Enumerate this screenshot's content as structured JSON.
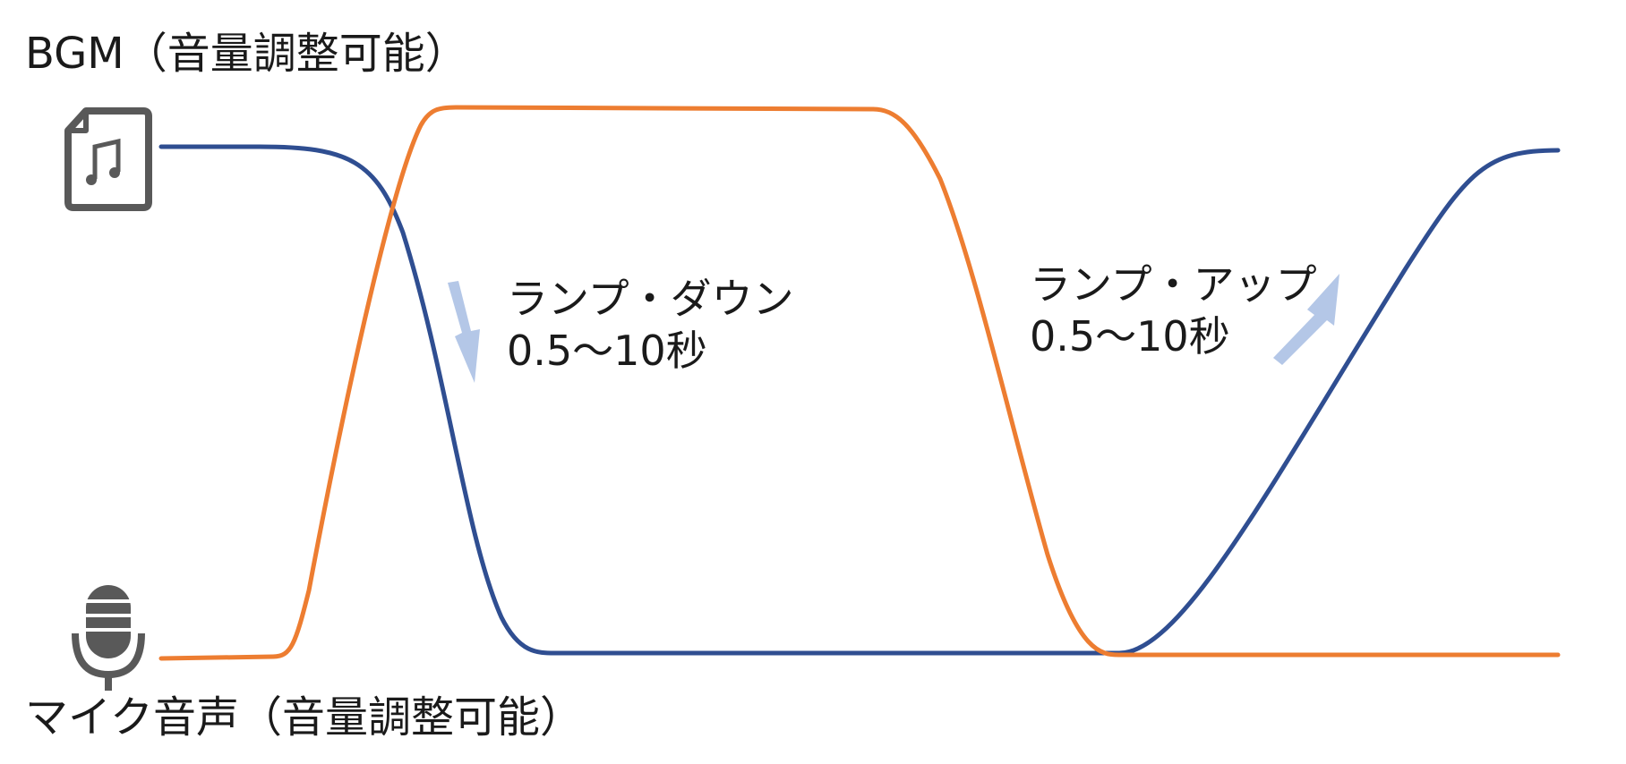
{
  "labels": {
    "bgm": "BGM（音量調整可能）",
    "mic": "マイク音声（音量調整可能）"
  },
  "ramp_down": {
    "title": "ランプ・ダウン",
    "duration": "0.5～10秒"
  },
  "ramp_up": {
    "title": "ランプ・アップ",
    "duration": "0.5～10秒"
  },
  "icons": {
    "bgm": "music-file-icon",
    "mic": "microphone-icon",
    "down_arrow": "arrow-down-icon",
    "up_arrow": "arrow-up-icon"
  },
  "colors": {
    "bgm_curve": "#2f4e91",
    "mic_curve": "#ed7d31",
    "arrow": "#b4c7e7",
    "icon": "#595959"
  }
}
